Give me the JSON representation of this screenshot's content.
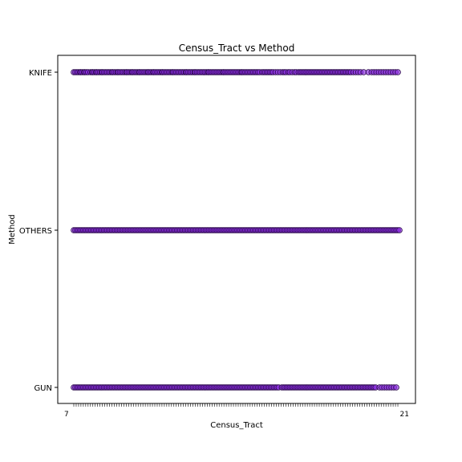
{
  "chart_data": {
    "type": "scatter",
    "title": "Census_Tract vs Method",
    "xlabel": "Census_Tract",
    "ylabel": "Method",
    "y_categories": [
      "GUN",
      "OTHERS",
      "KNIFE"
    ],
    "x_tick_first": "7",
    "x_tick_last": "21",
    "marker_fill": "#8a2be2",
    "marker_edge": "#2b0a4a",
    "grid": false,
    "legend": "none",
    "series": [
      {
        "category": "KNIFE",
        "x": [
          0,
          2,
          4,
          6,
          8,
          9,
          11,
          13,
          14,
          16,
          18,
          21,
          23,
          24,
          26,
          28,
          29,
          31,
          33,
          35,
          36,
          38,
          40,
          42,
          44,
          46,
          48,
          49,
          51,
          53,
          55,
          56,
          58,
          60,
          62,
          64,
          66,
          67,
          69,
          71,
          73,
          74,
          76,
          78,
          80,
          82,
          83,
          85,
          87,
          89,
          91,
          93,
          94,
          96,
          98,
          100,
          101,
          103,
          105,
          107,
          109,
          111,
          112,
          114,
          116,
          118,
          120,
          122,
          124,
          125,
          127,
          129,
          131,
          133,
          135,
          137,
          139,
          141,
          142,
          144,
          146,
          148,
          150,
          152,
          153,
          155,
          157,
          159,
          161,
          163,
          165,
          167,
          169,
          170,
          172,
          174,
          176,
          178,
          180,
          182,
          184,
          186,
          188,
          189,
          191,
          193,
          195,
          197,
          199,
          201,
          203,
          205,
          207,
          209,
          211,
          212,
          214,
          216,
          218,
          220,
          222,
          224,
          226,
          228,
          230,
          232,
          234,
          237,
          239,
          241,
          243,
          245,
          247,
          249,
          251,
          254,
          257,
          260,
          263,
          265,
          267,
          270,
          272,
          275,
          278,
          280,
          283,
          285,
          287,
          289,
          291,
          293,
          295,
          297,
          299,
          301,
          303,
          305,
          307,
          309,
          311,
          313,
          315,
          317,
          319,
          321,
          323,
          325,
          327,
          329,
          331,
          333,
          335,
          337,
          339,
          341,
          343,
          345,
          347,
          349,
          352,
          355,
          358,
          361,
          365,
          371,
          375,
          378,
          381,
          384,
          387,
          390,
          393,
          396,
          399,
          402,
          405,
          408
        ]
      },
      {
        "category": "OTHERS",
        "x": [
          0,
          2,
          4,
          6,
          8,
          10,
          12,
          14,
          16,
          18,
          20,
          22,
          24,
          26,
          28,
          30,
          32,
          34,
          36,
          38,
          40,
          42,
          44,
          46,
          48,
          50,
          52,
          54,
          56,
          58,
          60,
          62,
          64,
          66,
          68,
          70,
          72,
          74,
          76,
          78,
          80,
          82,
          84,
          86,
          88,
          90,
          92,
          94,
          96,
          98,
          100,
          102,
          104,
          106,
          108,
          110,
          112,
          114,
          116,
          118,
          120,
          122,
          124,
          126,
          128,
          130,
          132,
          134,
          136,
          138,
          140,
          142,
          144,
          146,
          148,
          150,
          152,
          154,
          156,
          158,
          160,
          162,
          164,
          166,
          168,
          170,
          172,
          174,
          176,
          178,
          180,
          182,
          184,
          186,
          188,
          190,
          192,
          194,
          196,
          198,
          200,
          202,
          204,
          206,
          208,
          210,
          212,
          214,
          216,
          218,
          220,
          222,
          224,
          226,
          228,
          230,
          232,
          234,
          236,
          238,
          240,
          242,
          244,
          246,
          248,
          250,
          252,
          254,
          256,
          258,
          260,
          262,
          264,
          266,
          268,
          270,
          272,
          274,
          276,
          278,
          280,
          282,
          284,
          286,
          288,
          290,
          292,
          294,
          296,
          298,
          300,
          302,
          304,
          306,
          308,
          310,
          312,
          314,
          316,
          318,
          320,
          322,
          324,
          326,
          328,
          330,
          332,
          334,
          336,
          338,
          340,
          342,
          344,
          346,
          348,
          350,
          352,
          354,
          356,
          358,
          360,
          362,
          364,
          366,
          368,
          370,
          372,
          374,
          376,
          378,
          380,
          382,
          384,
          386,
          388,
          390,
          392,
          394,
          396,
          398,
          400,
          402,
          404,
          406,
          408,
          410
        ]
      },
      {
        "category": "GUN",
        "x": [
          0,
          2,
          4,
          6,
          8,
          10,
          12,
          14,
          16,
          18,
          20,
          22,
          24,
          26,
          28,
          30,
          32,
          34,
          36,
          38,
          40,
          42,
          44,
          46,
          48,
          50,
          52,
          54,
          56,
          58,
          60,
          62,
          64,
          66,
          68,
          70,
          72,
          74,
          76,
          78,
          80,
          82,
          84,
          86,
          88,
          90,
          92,
          94,
          96,
          98,
          100,
          102,
          104,
          106,
          108,
          110,
          112,
          114,
          116,
          118,
          120,
          122,
          124,
          126,
          128,
          130,
          132,
          134,
          136,
          138,
          140,
          142,
          144,
          146,
          148,
          150,
          152,
          154,
          156,
          158,
          160,
          162,
          164,
          166,
          168,
          170,
          172,
          174,
          176,
          178,
          180,
          182,
          184,
          186,
          188,
          190,
          192,
          194,
          196,
          198,
          200,
          202,
          204,
          206,
          208,
          210,
          212,
          214,
          216,
          218,
          220,
          222,
          224,
          226,
          228,
          230,
          232,
          234,
          236,
          238,
          240,
          242,
          244,
          246,
          248,
          250,
          252,
          254,
          256,
          258,
          262,
          264,
          266,
          268,
          270,
          272,
          274,
          276,
          278,
          280,
          282,
          284,
          286,
          288,
          290,
          292,
          294,
          296,
          298,
          300,
          302,
          304,
          306,
          308,
          310,
          312,
          314,
          316,
          318,
          320,
          322,
          324,
          326,
          328,
          330,
          332,
          334,
          336,
          338,
          340,
          342,
          344,
          346,
          348,
          350,
          352,
          354,
          356,
          358,
          360,
          362,
          364,
          366,
          368,
          370,
          372,
          374,
          376,
          378,
          380,
          385,
          388,
          391,
          394,
          397,
          400,
          403,
          406
        ]
      }
    ]
  }
}
